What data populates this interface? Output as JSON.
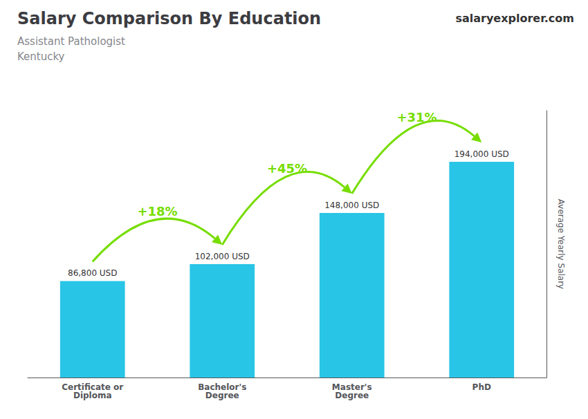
{
  "chart_data": {
    "type": "bar",
    "title": "Salary Comparison By Education",
    "subtitle": [
      "Assistant Pathologist",
      "Kentucky"
    ],
    "brand": "salaryexplorer.com",
    "ylabel": "Average Yearly Salary",
    "categories": [
      "Certificate or\nDiploma",
      "Bachelor's\nDegree",
      "Master's\nDegree",
      "PhD"
    ],
    "values": [
      86800,
      102000,
      148000,
      194000
    ],
    "value_labels": [
      "86,800 USD",
      "102,000 USD",
      "148,000 USD",
      "194,000 USD"
    ],
    "data_labels": true,
    "color": "#29c5e6",
    "annotations": [
      {
        "text": "+18%",
        "color": "#77dd00"
      },
      {
        "text": "+45%",
        "color": "#77dd00"
      },
      {
        "text": "+31%",
        "color": "#77dd00"
      }
    ],
    "ylim": [
      0,
      240000
    ],
    "grid": false,
    "tick_labels": "x"
  }
}
